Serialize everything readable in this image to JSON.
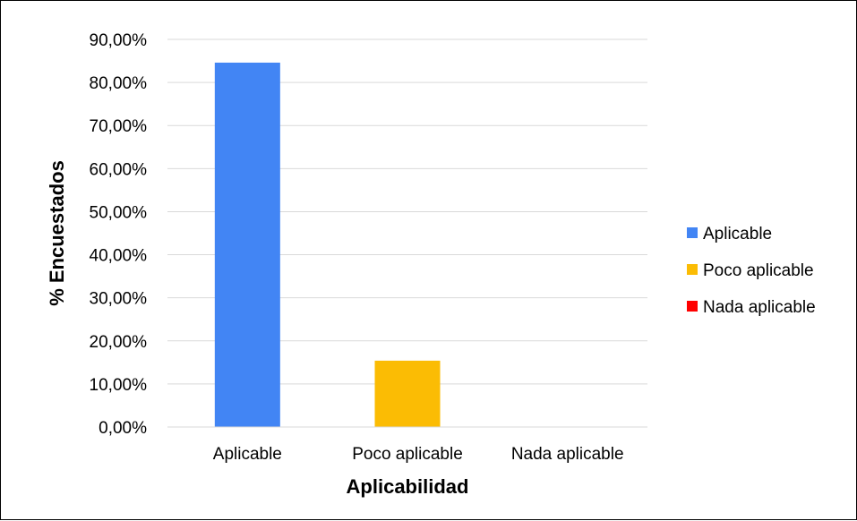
{
  "chart_data": {
    "type": "bar",
    "title": "",
    "xlabel": "Aplicabilidad",
    "ylabel": "% Encuestados",
    "categories": [
      "Aplicable",
      "Poco aplicable",
      "Nada aplicable"
    ],
    "values": [
      84.6,
      15.4,
      0
    ],
    "ylim": [
      0,
      90
    ],
    "yticks": [
      0,
      10,
      20,
      30,
      40,
      50,
      60,
      70,
      80,
      90
    ],
    "ytick_labels": [
      "0,00%",
      "10,00%",
      "20,00%",
      "30,00%",
      "40,00%",
      "50,00%",
      "60,00%",
      "70,00%",
      "80,00%",
      "90,00%"
    ],
    "colors": [
      "#4285F4",
      "#FBBC04",
      "#FF0000"
    ],
    "grid": true,
    "legend": {
      "position": "right",
      "entries": [
        "Aplicable",
        "Poco aplicable",
        "Nada aplicable"
      ]
    }
  }
}
